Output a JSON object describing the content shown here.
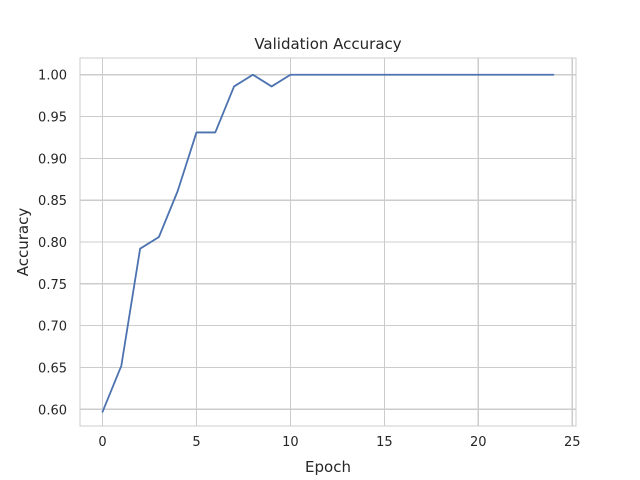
{
  "chart_data": {
    "type": "line",
    "title": "Validation Accuracy",
    "xlabel": "Epoch",
    "ylabel": "Accuracy",
    "xlim": [
      -1.2,
      25.2
    ],
    "ylim": [
      0.58,
      1.02
    ],
    "xticks": [
      0,
      5,
      10,
      15,
      20,
      25
    ],
    "yticks": [
      0.6,
      0.65,
      0.7,
      0.75,
      0.8,
      0.85,
      0.9,
      0.95,
      1.0
    ],
    "ytick_labels": [
      "0.60",
      "0.65",
      "0.70",
      "0.75",
      "0.80",
      "0.85",
      "0.90",
      "0.95",
      "1.00"
    ],
    "grid": true,
    "line_color": "#4c72b0",
    "series": [
      {
        "x": [
          0,
          1,
          2,
          3,
          4,
          5,
          6,
          7,
          8,
          9,
          10,
          11,
          12,
          13,
          14,
          15,
          16,
          17,
          18,
          19,
          20,
          21,
          22,
          23,
          24
        ],
        "values": [
          0.597,
          0.652,
          0.792,
          0.806,
          0.861,
          0.931,
          0.931,
          0.986,
          1.0,
          0.986,
          1.0,
          1.0,
          1.0,
          1.0,
          1.0,
          1.0,
          1.0,
          1.0,
          1.0,
          1.0,
          1.0,
          1.0,
          1.0,
          1.0,
          1.0
        ]
      }
    ]
  }
}
